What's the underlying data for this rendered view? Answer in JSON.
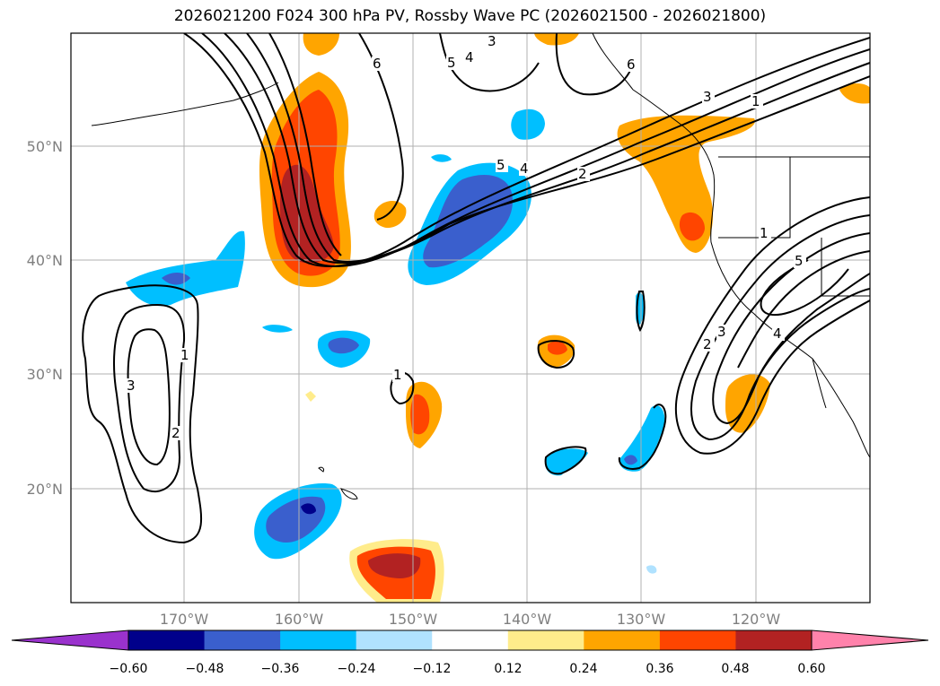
{
  "title": "2026021200 F024 300 hPa PV, Rossby Wave PC (2026021500 - 2026021800)",
  "map": {
    "lat_labels": [
      "50°N",
      "40°N",
      "30°N",
      "20°N"
    ],
    "lon_labels": [
      "170°W",
      "160°W",
      "150°W",
      "140°W",
      "130°W",
      "120°W"
    ]
  },
  "colorbar": {
    "levels": [
      "−0.60",
      "−0.48",
      "−0.36",
      "−0.24",
      "−0.12",
      "0.12",
      "0.24",
      "0.36",
      "0.48",
      "0.60"
    ],
    "colors": [
      "#9a32cd",
      "#00008b",
      "#3a5fcd",
      "#00bfff",
      "#b0e2ff",
      "#ffffff",
      "#ffec8b",
      "#ffa500",
      "#ff4500",
      "#b22222",
      "#ff82ab"
    ]
  },
  "contour_labels": [
    "1",
    "2",
    "3",
    "4",
    "5",
    "6"
  ]
}
